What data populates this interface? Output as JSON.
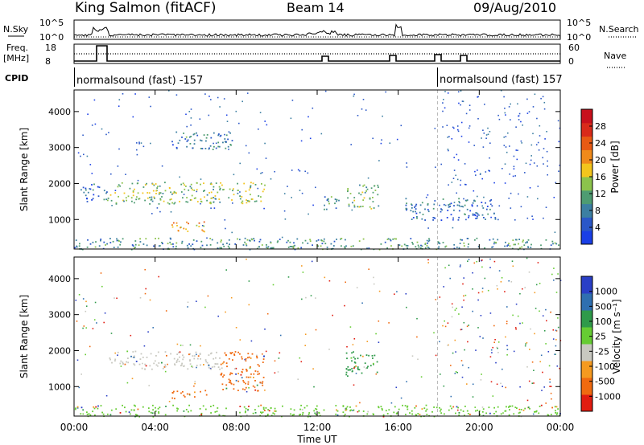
{
  "header": {
    "station": "King Salmon (fitACF)",
    "beam": "Beam 14",
    "date": "09/Aug/2010"
  },
  "strips": {
    "nsky_label": "N.Sky",
    "nsky_ticks": [
      "10^5",
      "10^0"
    ],
    "nsearch_label": "N.Search",
    "freq_label": "Freq.",
    "freq_unit": "[MHz]",
    "freq_ticks": [
      "18",
      "8"
    ],
    "nave_label": "Nave",
    "nave_ticks": [
      "60",
      "0"
    ],
    "cpid_label": "CPID",
    "cpid_segments": [
      {
        "label": "normalsound (fast) -157",
        "start_hour": 0
      },
      {
        "label": "normalsound (fast) 157",
        "start_hour": 18
      }
    ]
  },
  "chart_data": [
    {
      "type": "heatmap",
      "title": "",
      "xlabel": "Time UT",
      "ylabel": "Slant Range [km]",
      "xlim_hours": [
        0,
        24
      ],
      "ylim": [
        180,
        4600
      ],
      "x_tick_labels": [
        "00:00",
        "04:00",
        "08:00",
        "12:00",
        "16:00",
        "20:00",
        "00:00"
      ],
      "y_tick_values": [
        1000,
        2000,
        3000,
        4000
      ],
      "y_tick_labels": [
        "1000",
        "2000",
        "3000",
        "4000"
      ],
      "colorbar": {
        "label": "Power [dB]",
        "ticks": [
          "4",
          "8",
          "12",
          "16",
          "20",
          "24",
          "28"
        ],
        "colors": [
          "#1a3fe6",
          "#2a57c8",
          "#3c7fa2",
          "#4e9c72",
          "#8cc34c",
          "#f3c51d",
          "#f08a1b",
          "#e85a14",
          "#d92a1a",
          "#c8101c"
        ]
      },
      "features": [
        {
          "desc": "band",
          "t0": 1.6,
          "t1": 9.4,
          "r0": 1450,
          "r1": 2050,
          "level": 14
        },
        {
          "desc": "band",
          "t0": 0.3,
          "t1": 1.6,
          "r0": 1500,
          "r1": 2000,
          "level": 6
        },
        {
          "desc": "blob",
          "t0": 4.8,
          "t1": 6.6,
          "r0": 680,
          "r1": 950,
          "level": 20
        },
        {
          "desc": "cloud",
          "t0": 4.8,
          "t1": 8.0,
          "r0": 2950,
          "r1": 3450,
          "level": 8
        },
        {
          "desc": "patch",
          "t0": 12.3,
          "t1": 13.1,
          "r0": 1300,
          "r1": 1700,
          "level": 10
        },
        {
          "desc": "patch",
          "t0": 13.4,
          "t1": 15.0,
          "r0": 1300,
          "r1": 2000,
          "level": 13
        },
        {
          "desc": "patch",
          "t0": 16.3,
          "t1": 17.8,
          "r0": 1000,
          "r1": 1600,
          "level": 7
        },
        {
          "desc": "patch",
          "t0": 18.0,
          "t1": 20.8,
          "r0": 1000,
          "r1": 1600,
          "level": 6
        },
        {
          "desc": "ground",
          "t0": 0.0,
          "t1": 24.0,
          "r0": 180,
          "r1": 500,
          "level": 10
        }
      ]
    },
    {
      "type": "heatmap",
      "title": "",
      "xlabel": "Time UT",
      "ylabel": "Slant Range [km]",
      "xlim_hours": [
        0,
        24
      ],
      "ylim": [
        180,
        4600
      ],
      "x_tick_labels": [
        "00:00",
        "04:00",
        "08:00",
        "12:00",
        "16:00",
        "20:00",
        "00:00"
      ],
      "y_tick_values": [
        1000,
        2000,
        3000,
        4000
      ],
      "y_tick_labels": [
        "1000",
        "2000",
        "3000",
        "4000"
      ],
      "colorbar": {
        "label": "Velocity [m s⁻¹]",
        "ticks": [
          "1000",
          "500",
          "100",
          "25",
          "-25",
          "-100",
          "-500",
          "-1000"
        ],
        "colors": [
          "#2a3fc6",
          "#2f6fb0",
          "#2f9a4a",
          "#66cc33",
          "#c8c8c0",
          "#f59a20",
          "#f06a10",
          "#e11c10"
        ]
      },
      "features": [
        {
          "desc": "band",
          "t0": 1.6,
          "t1": 7.2,
          "r0": 1500,
          "r1": 2000,
          "velocity_class": "-25..25"
        },
        {
          "desc": "band",
          "t0": 7.2,
          "t1": 9.4,
          "r0": 900,
          "r1": 2000,
          "velocity_class": "-500..-100"
        },
        {
          "desc": "blob",
          "t0": 4.8,
          "t1": 6.6,
          "r0": 680,
          "r1": 950,
          "velocity_class": "-500..-100"
        },
        {
          "desc": "patch",
          "t0": 13.4,
          "t1": 15.0,
          "r0": 1300,
          "r1": 2000,
          "velocity_class": "100..500"
        },
        {
          "desc": "ground",
          "t0": 0.0,
          "t1": 24.0,
          "r0": 180,
          "r1": 500,
          "velocity_class": "25..100"
        }
      ]
    }
  ]
}
